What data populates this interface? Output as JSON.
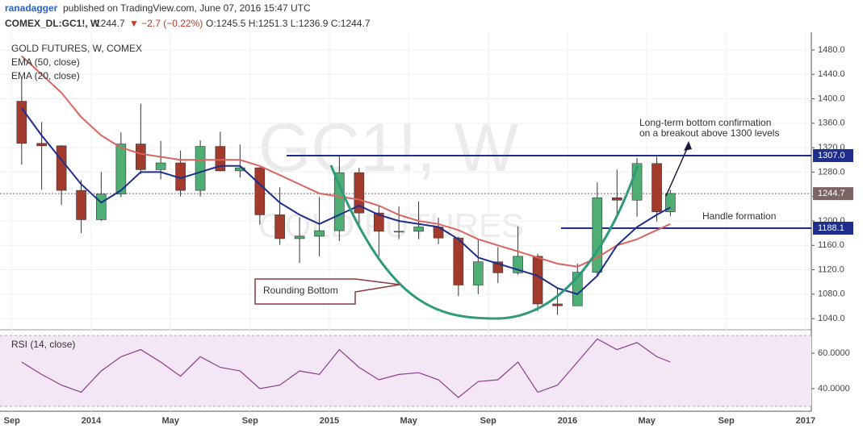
{
  "header": {
    "author": "ranadagger",
    "published": "published on TradingView.com, June 07, 2016 15:47 UTC",
    "symbol": "COMEX_DL:GC1!, W",
    "last": "1244.7",
    "change": "▼ −2.7 (−0.22%)",
    "ohlc": "O:1245.5 H:1251.3 L:1236.9 C:1244.7"
  },
  "chart_data": [
    {
      "type": "candlestick",
      "title": "GOLD FUTURES, W, COMEX",
      "watermark": "GC1!, W",
      "watermark2": "GOLD FUTURES",
      "up_color": "#4fae74",
      "down_color": "#a23b2c",
      "x": [
        2013.708,
        2013.792,
        2013.875,
        2013.958,
        2014.042,
        2014.125,
        2014.208,
        2014.292,
        2014.375,
        2014.458,
        2014.542,
        2014.625,
        2014.708,
        2014.792,
        2014.875,
        2014.958,
        2015.042,
        2015.125,
        2015.208,
        2015.292,
        2015.375,
        2015.458,
        2015.542,
        2015.625,
        2015.708,
        2015.792,
        2015.875,
        2015.958,
        2016.042,
        2016.125,
        2016.208,
        2016.292,
        2016.375,
        2016.432
      ],
      "open": [
        1396,
        1327,
        1323,
        1250,
        1202,
        1244,
        1326,
        1284,
        1295,
        1250,
        1322,
        1282,
        1287,
        1210,
        1171,
        1175,
        1184,
        1279,
        1213,
        1183,
        1183,
        1190,
        1172,
        1095,
        1133,
        1115,
        1142,
        1064,
        1061,
        1116,
        1238,
        1234,
        1294,
        1215
      ],
      "high": [
        1434,
        1362,
        1324,
        1267,
        1280,
        1345,
        1392,
        1331,
        1315,
        1332,
        1346,
        1325,
        1288,
        1255,
        1206,
        1239,
        1307,
        1287,
        1225,
        1224,
        1232,
        1205,
        1174,
        1170,
        1157,
        1191,
        1146,
        1089,
        1130,
        1263,
        1284,
        1303,
        1305,
        1251
      ],
      "low": [
        1292,
        1251,
        1226,
        1180,
        1200,
        1239,
        1277,
        1268,
        1240,
        1240,
        1281,
        1271,
        1194,
        1161,
        1131,
        1142,
        1167,
        1190,
        1142,
        1170,
        1170,
        1162,
        1077,
        1080,
        1098,
        1112,
        1052,
        1046,
        1061,
        1110,
        1206,
        1207,
        1199,
        1208
      ],
      "close": [
        1327,
        1323,
        1250,
        1202,
        1244,
        1326,
        1284,
        1295,
        1250,
        1322,
        1282,
        1287,
        1210,
        1171,
        1175,
        1184,
        1279,
        1213,
        1183,
        1183,
        1190,
        1172,
        1095,
        1133,
        1115,
        1142,
        1064,
        1061,
        1116,
        1238,
        1234,
        1294,
        1215,
        1245
      ],
      "series": [
        {
          "name": "EMA (50, close)",
          "color": "#d9655e",
          "values": [
            1470,
            1440,
            1410,
            1370,
            1340,
            1320,
            1310,
            1305,
            1300,
            1300,
            1300,
            1300,
            1290,
            1275,
            1260,
            1245,
            1240,
            1235,
            1225,
            1210,
            1200,
            1195,
            1185,
            1170,
            1160,
            1150,
            1140,
            1130,
            1125,
            1140,
            1160,
            1170,
            1185,
            1195
          ]
        },
        {
          "name": "EMA (20, close)",
          "color": "#1f2e8c",
          "values": [
            1385,
            1340,
            1300,
            1260,
            1230,
            1250,
            1280,
            1280,
            1270,
            1280,
            1290,
            1290,
            1260,
            1230,
            1210,
            1195,
            1210,
            1225,
            1210,
            1200,
            1195,
            1190,
            1170,
            1140,
            1130,
            1120,
            1110,
            1090,
            1080,
            1110,
            1160,
            1190,
            1210,
            1222
          ]
        }
      ],
      "hlines": [
        {
          "value": 1307,
          "label": "1307.0",
          "color": "#1f2e8c"
        },
        {
          "value": 1188.1,
          "label": "1188.1",
          "color": "#1f2e8c"
        },
        {
          "value": 1244.7,
          "label": "1244.7",
          "color": "#7a6464"
        }
      ],
      "ylim": [
        1023,
        1509
      ],
      "yticks": [
        {
          "value": 1040,
          "label": "1040.0"
        },
        {
          "value": 1080,
          "label": "1080.0"
        },
        {
          "value": 1120,
          "label": "1120.0"
        },
        {
          "value": 1160,
          "label": "1160.0"
        },
        {
          "value": 1200,
          "label": "1200.0"
        },
        {
          "value": 1240,
          "label": "1240.0"
        },
        {
          "value": 1280,
          "label": "1280.0"
        },
        {
          "value": 1320,
          "label": "1320.0"
        },
        {
          "value": 1360,
          "label": "1360.0"
        },
        {
          "value": 1400,
          "label": "1400.0"
        },
        {
          "value": 1440,
          "label": "1440.0"
        },
        {
          "value": 1480,
          "label": "1480.0"
        }
      ],
      "xlim": [
        2013.617,
        2017.024
      ],
      "xticks": [
        {
          "value": 2013.667,
          "label": "Sep"
        },
        2014,
        {
          "value": 2014.333,
          "label": "May"
        },
        {
          "value": 2014.667,
          "label": "Sep"
        },
        2015,
        {
          "value": 2015.333,
          "label": "May"
        },
        {
          "value": 2015.667,
          "label": "Sep"
        },
        2016,
        {
          "value": 2016.333,
          "label": "May"
        },
        {
          "value": 2016.667,
          "label": "Sep"
        },
        2017
      ],
      "annotations": [
        "Long-term bottom confirmation",
        "on a breakout above 1300 levels",
        "Handle formation",
        "Rounding Bottom"
      ]
    },
    {
      "type": "line",
      "title": "RSI (14, close)",
      "color": "#8e3b8e",
      "band": [
        30,
        70
      ],
      "values": [
        55,
        48,
        42,
        38,
        50,
        58,
        62,
        55,
        47,
        58,
        52,
        50,
        40,
        42,
        50,
        48,
        62,
        52,
        45,
        48,
        49,
        45,
        35,
        44,
        45,
        55,
        38,
        42,
        55,
        68,
        62,
        66,
        58,
        55
      ],
      "ylim": [
        27.3,
        71.8
      ],
      "yticks": [
        {
          "value": 40,
          "label": "40.0000"
        },
        {
          "value": 60,
          "label": "60.0000"
        }
      ]
    }
  ]
}
